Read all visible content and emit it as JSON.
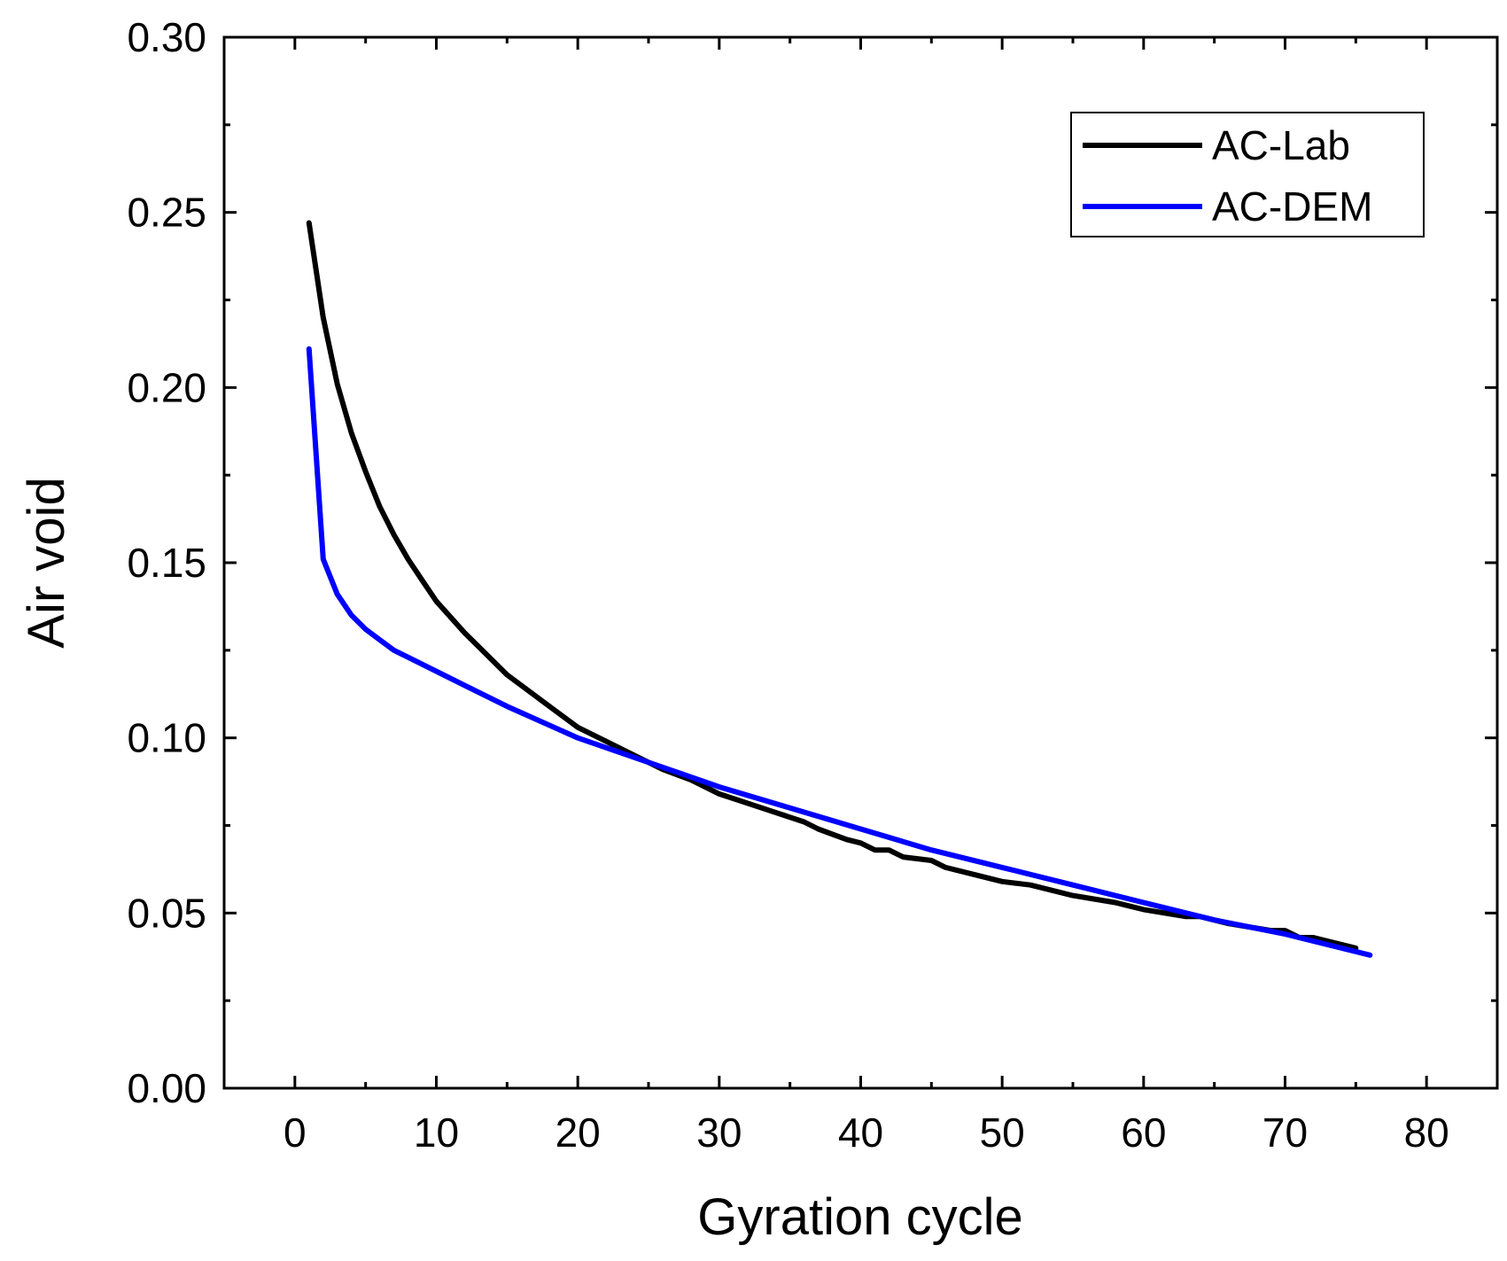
{
  "chart_data": {
    "type": "line",
    "title": "",
    "xlabel": "Gyration cycle",
    "ylabel": "Air void",
    "xlim": [
      -5,
      85
    ],
    "ylim": [
      0.0,
      0.3
    ],
    "x_ticks": [
      0,
      10,
      20,
      30,
      40,
      50,
      60,
      70,
      80
    ],
    "x_tick_labels": [
      "0",
      "10",
      "20",
      "30",
      "40",
      "50",
      "60",
      "70",
      "80"
    ],
    "y_ticks": [
      0.0,
      0.05,
      0.1,
      0.15,
      0.2,
      0.25,
      0.3
    ],
    "y_tick_labels": [
      "0.00",
      "0.05",
      "0.10",
      "0.15",
      "0.20",
      "0.25",
      "0.30"
    ],
    "grid": false,
    "legend_position": "top-right",
    "series": [
      {
        "name": "AC-Lab",
        "color": "#000000",
        "x": [
          1,
          2,
          3,
          4,
          5,
          6,
          7,
          8,
          9,
          10,
          12,
          13,
          14,
          15,
          16,
          18,
          20,
          22,
          24,
          26,
          28,
          30,
          33,
          36,
          37,
          39,
          40,
          41,
          42,
          43,
          45,
          46,
          48,
          49,
          50,
          52,
          55,
          58,
          60,
          63,
          64,
          66,
          69,
          70,
          71,
          72,
          73,
          75
        ],
        "values": [
          0.247,
          0.22,
          0.201,
          0.187,
          0.176,
          0.166,
          0.158,
          0.151,
          0.145,
          0.139,
          0.13,
          0.126,
          0.122,
          0.118,
          0.115,
          0.109,
          0.103,
          0.099,
          0.095,
          0.091,
          0.088,
          0.084,
          0.08,
          0.076,
          0.074,
          0.071,
          0.07,
          0.068,
          0.068,
          0.066,
          0.065,
          0.063,
          0.061,
          0.06,
          0.059,
          0.058,
          0.055,
          0.053,
          0.051,
          0.049,
          0.049,
          0.047,
          0.045,
          0.045,
          0.043,
          0.043,
          0.042,
          0.04
        ]
      },
      {
        "name": "AC-DEM",
        "color": "#0000FF",
        "x": [
          1,
          2,
          3,
          4,
          5,
          6,
          7,
          8,
          10,
          12,
          15,
          20,
          25,
          30,
          35,
          40,
          45,
          50,
          55,
          60,
          65,
          70,
          76
        ],
        "values": [
          0.211,
          0.151,
          0.141,
          0.135,
          0.131,
          0.128,
          0.125,
          0.123,
          0.119,
          0.115,
          0.109,
          0.1,
          0.093,
          0.086,
          0.08,
          0.074,
          0.068,
          0.063,
          0.058,
          0.053,
          0.048,
          0.044,
          0.038
        ]
      }
    ]
  }
}
